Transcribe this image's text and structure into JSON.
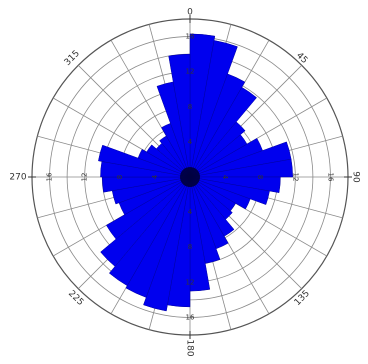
{
  "chart_data": {
    "type": "rose",
    "angle_unit": "degrees",
    "angular_zero": "north",
    "direction": "clockwise",
    "bin_width": 10,
    "r_max": 18,
    "ring_step": 2,
    "spoke_step": 15,
    "direction_labels": [
      "0",
      "45",
      "90",
      "135",
      "180",
      "225",
      "270",
      "315"
    ],
    "radial_labels": [
      "4",
      "8",
      "12",
      "16"
    ],
    "bins": [
      {
        "start": 0,
        "value": 16.3
      },
      {
        "start": 10,
        "value": 15.8
      },
      {
        "start": 20,
        "value": 12.5
      },
      {
        "start": 30,
        "value": 11.8
      },
      {
        "start": 40,
        "value": 8.2
      },
      {
        "start": 50,
        "value": 7.5
      },
      {
        "start": 60,
        "value": 8.8
      },
      {
        "start": 70,
        "value": 11.7
      },
      {
        "start": 80,
        "value": 11.7
      },
      {
        "start": 90,
        "value": 10.3
      },
      {
        "start": 100,
        "value": 9.2
      },
      {
        "start": 110,
        "value": 7.3
      },
      {
        "start": 120,
        "value": 6.0
      },
      {
        "start": 130,
        "value": 6.3
      },
      {
        "start": 140,
        "value": 7.8
      },
      {
        "start": 150,
        "value": 8.7
      },
      {
        "start": 160,
        "value": 10.0
      },
      {
        "start": 170,
        "value": 13.0
      },
      {
        "start": 180,
        "value": 14.8
      },
      {
        "start": 190,
        "value": 15.5
      },
      {
        "start": 200,
        "value": 14.6
      },
      {
        "start": 210,
        "value": 14.3
      },
      {
        "start": 220,
        "value": 13.3
      },
      {
        "start": 230,
        "value": 11.0
      },
      {
        "start": 240,
        "value": 8.6
      },
      {
        "start": 250,
        "value": 9.0
      },
      {
        "start": 260,
        "value": 10.0
      },
      {
        "start": 270,
        "value": 10.2
      },
      {
        "start": 280,
        "value": 10.6
      },
      {
        "start": 290,
        "value": 6.3
      },
      {
        "start": 300,
        "value": 5.7
      },
      {
        "start": 310,
        "value": 5.0
      },
      {
        "start": 320,
        "value": 5.4
      },
      {
        "start": 330,
        "value": 6.5
      },
      {
        "start": 340,
        "value": 11.0
      },
      {
        "start": 350,
        "value": 14.0
      }
    ],
    "colors": {
      "fill": "#0000ee",
      "center": "#000030"
    }
  }
}
